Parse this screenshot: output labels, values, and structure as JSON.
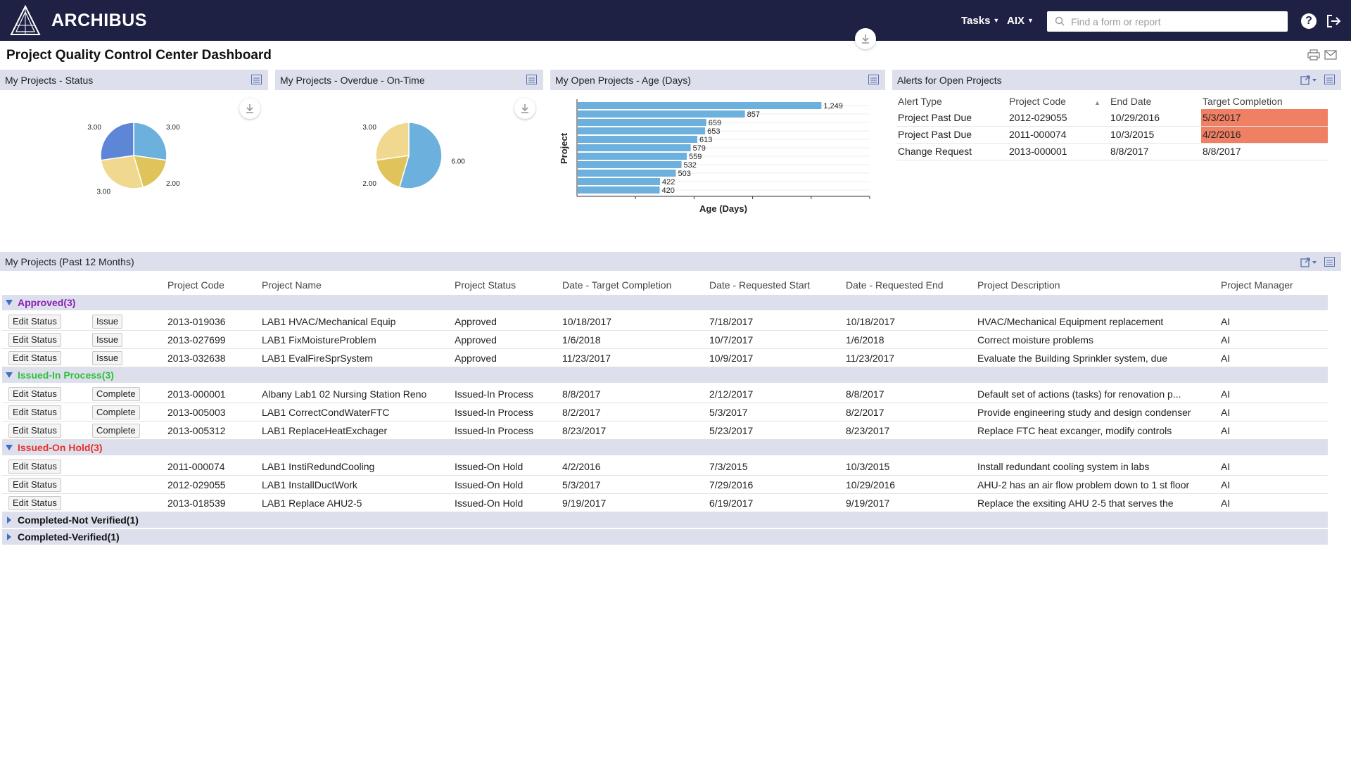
{
  "app": {
    "name": "ARCHIBUS",
    "menus": [
      {
        "label": "Tasks"
      },
      {
        "label": "AIX"
      }
    ],
    "search_placeholder": "Find a form or report",
    "help_label": "?"
  },
  "page": {
    "title": "Project Quality Control Center Dashboard"
  },
  "panels": {
    "status": {
      "title": "My Projects - Status",
      "chart_data": {
        "type": "pie",
        "values": [
          3.0,
          2.0,
          3.0,
          3.0
        ],
        "value_labels": [
          "3.00",
          "2.00",
          "3.00",
          "3.00"
        ],
        "colors": [
          "#6cb0de",
          "#e0c35a",
          "#f0d98e",
          "#5d86d6"
        ]
      }
    },
    "overdue": {
      "title": "My Projects - Overdue - On-Time",
      "chart_data": {
        "type": "pie",
        "values": [
          6.0,
          2.0,
          3.0
        ],
        "value_labels": [
          "6.00",
          "2.00",
          "3.00"
        ],
        "colors": [
          "#6cb0de",
          "#e0c35a",
          "#f0d98e"
        ]
      }
    },
    "age": {
      "title": "My Open Projects - Age (Days)",
      "chart_data": {
        "type": "bar",
        "orientation": "horizontal",
        "values": [
          1249,
          857,
          659,
          653,
          613,
          579,
          559,
          532,
          503,
          422,
          420
        ],
        "value_labels": [
          "1,249",
          "857",
          "659",
          "653",
          "613",
          "579",
          "559",
          "532",
          "503",
          "422",
          "420"
        ],
        "xlabel": "Age (Days)",
        "ylabel": "Project",
        "bar_color": "#6cb0de"
      }
    },
    "alerts": {
      "title": "Alerts for Open Projects",
      "columns": [
        "Alert Type",
        "Project Code",
        "End Date",
        "Target Completion"
      ],
      "rows": [
        {
          "type": "Project Past Due",
          "code": "2012-029055",
          "end": "10/29/2016",
          "target": "5/3/2017",
          "highlight": true
        },
        {
          "type": "Project Past Due",
          "code": "2011-000074",
          "end": "10/3/2015",
          "target": "4/2/2016",
          "highlight": true
        },
        {
          "type": "Change Request",
          "code": "2013-000001",
          "end": "8/8/2017",
          "target": "8/8/2017",
          "highlight": false
        }
      ]
    }
  },
  "grid": {
    "title": "My Projects (Past 12 Months)",
    "columns": [
      "Project Code",
      "Project Name",
      "Project Status",
      "Date - Target Completion",
      "Date - Requested Start",
      "Date - Requested End",
      "Project Description",
      "Project Manager"
    ],
    "groups": [
      {
        "label": "Approved(3)",
        "color": "#8a1fb5",
        "expanded": true,
        "rows": [
          {
            "edit": "Edit Status",
            "action": "Issue",
            "code": "2013-019036",
            "name": "LAB1 HVAC/Mechanical Equip",
            "status": "Approved",
            "target": "10/18/2017",
            "start": "7/18/2017",
            "end": "10/18/2017",
            "desc": "HVAC/Mechanical Equipment replacement",
            "mgr": "AI"
          },
          {
            "edit": "Edit Status",
            "action": "Issue",
            "code": "2013-027699",
            "name": "LAB1 FixMoistureProblem",
            "status": "Approved",
            "target": "1/6/2018",
            "start": "10/7/2017",
            "end": "1/6/2018",
            "desc": "Correct moisture problems",
            "mgr": "AI"
          },
          {
            "edit": "Edit Status",
            "action": "Issue",
            "code": "2013-032638",
            "name": "LAB1 EvalFireSprSystem",
            "status": "Approved",
            "target": "11/23/2017",
            "start": "10/9/2017",
            "end": "11/23/2017",
            "desc": "Evaluate the Building Sprinkler system, due",
            "mgr": "AI"
          }
        ]
      },
      {
        "label": "Issued-In Process(3)",
        "color": "#2fbf3a",
        "expanded": true,
        "rows": [
          {
            "edit": "Edit Status",
            "action": "Complete",
            "code": "2013-000001",
            "name": "Albany Lab1 02 Nursing Station Reno",
            "status": "Issued-In Process",
            "target": "8/8/2017",
            "start": "2/12/2017",
            "end": "8/8/2017",
            "desc": "Default set of actions (tasks) for renovation p...",
            "mgr": "AI"
          },
          {
            "edit": "Edit Status",
            "action": "Complete",
            "code": "2013-005003",
            "name": "LAB1 CorrectCondWaterFTC",
            "status": "Issued-In Process",
            "target": "8/2/2017",
            "start": "5/3/2017",
            "end": "8/2/2017",
            "desc": "Provide engineering study and design condenser",
            "mgr": "AI"
          },
          {
            "edit": "Edit Status",
            "action": "Complete",
            "code": "2013-005312",
            "name": "LAB1 ReplaceHeatExchager",
            "status": "Issued-In Process",
            "target": "8/23/2017",
            "start": "5/23/2017",
            "end": "8/23/2017",
            "desc": "Replace FTC heat excanger, modify controls",
            "mgr": "AI"
          }
        ]
      },
      {
        "label": "Issued-On Hold(3)",
        "color": "#e8302a",
        "expanded": true,
        "rows": [
          {
            "edit": "Edit Status",
            "action": "",
            "code": "2011-000074",
            "name": "LAB1 InstiRedundCooling",
            "status": "Issued-On Hold",
            "target": "4/2/2016",
            "start": "7/3/2015",
            "end": "10/3/2015",
            "desc": "Install redundant cooling system in labs",
            "mgr": "AI"
          },
          {
            "edit": "Edit Status",
            "action": "",
            "code": "2012-029055",
            "name": "LAB1 InstallDuctWork",
            "status": "Issued-On Hold",
            "target": "5/3/2017",
            "start": "7/29/2016",
            "end": "10/29/2016",
            "desc": "AHU-2 has an air flow problem down to 1 st floor",
            "mgr": "AI"
          },
          {
            "edit": "Edit Status",
            "action": "",
            "code": "2013-018539",
            "name": "LAB1 Replace AHU2-5",
            "status": "Issued-On Hold",
            "target": "9/19/2017",
            "start": "6/19/2017",
            "end": "9/19/2017",
            "desc": "Replace the exsiting AHU 2-5 that serves the",
            "mgr": "AI"
          }
        ]
      },
      {
        "label": "Completed-Not Verified(1)",
        "color": "#111111",
        "expanded": false,
        "rows": []
      },
      {
        "label": "Completed-Verified(1)",
        "color": "#111111",
        "expanded": false,
        "rows": []
      }
    ]
  }
}
